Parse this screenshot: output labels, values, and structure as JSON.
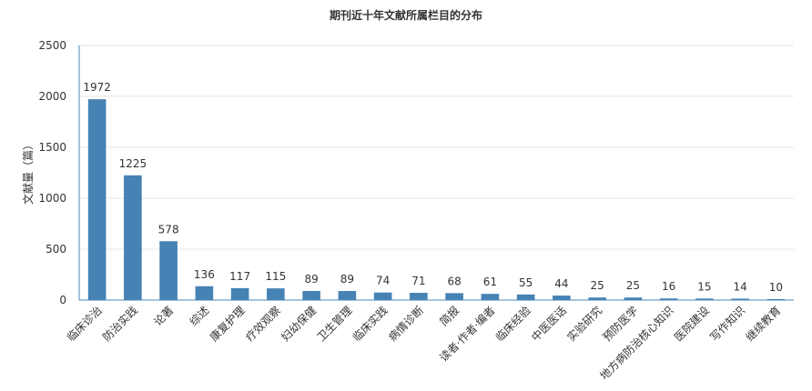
{
  "chart_data": {
    "type": "bar",
    "title": "期刊近十年文献所属栏目的分布",
    "xlabel": "",
    "ylabel": "文献量（篇）",
    "ylim": [
      0,
      2500
    ],
    "yticks": [
      0,
      500,
      1000,
      1500,
      2000,
      2500
    ],
    "grid": true,
    "legend": "none",
    "bar_color": "#4682b4",
    "axis_color": "#4b87b8",
    "categories": [
      "临床诊治",
      "防治实践",
      "论著",
      "综述",
      "康复护理",
      "疗效观察",
      "妇幼保健",
      "卫生管理",
      "临床实践",
      "病情诊断",
      "简报",
      "读者·作者·编者",
      "临床经验",
      "中医医话",
      "实验研究",
      "预防医学",
      "地方病防治核心知识",
      "医院建设",
      "写作知识",
      "继续教育"
    ],
    "values": [
      1972,
      1225,
      578,
      136,
      117,
      115,
      89,
      89,
      74,
      71,
      68,
      61,
      55,
      44,
      25,
      25,
      16,
      15,
      14,
      10
    ]
  }
}
